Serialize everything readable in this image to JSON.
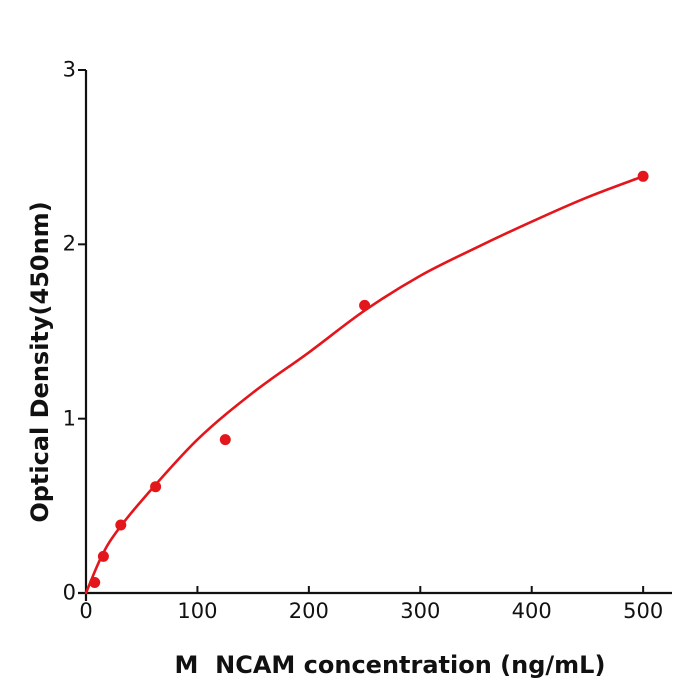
{
  "figure": {
    "background": "#ffffff",
    "axis_color": "#111111",
    "text_color": "#111111"
  },
  "chart_data": {
    "type": "scatter",
    "title": "",
    "xlabel": "M  NCAM concentration (ng/mL)",
    "ylabel": "Optical Density(450nm)",
    "xlim": [
      0,
      526
    ],
    "ylim": [
      0,
      3
    ],
    "x_ticks": [
      0,
      100,
      200,
      300,
      400,
      500
    ],
    "y_ticks": [
      0,
      1,
      2,
      3
    ],
    "grid": false,
    "legend": "none",
    "series": [
      {
        "name": "standard-points",
        "type": "scatter",
        "marker": "circle",
        "marker_radius": 5.5,
        "color": "#e3161c",
        "x": [
          7.8,
          15.6,
          31.2,
          62.5,
          125,
          250,
          500
        ],
        "y": [
          0.06,
          0.21,
          0.39,
          0.61,
          0.88,
          1.65,
          2.39
        ]
      },
      {
        "name": "fit-curve",
        "type": "line",
        "line_width": 2.6,
        "color": "#e3161c",
        "x": [
          0,
          12.5,
          25,
          50,
          100,
          150,
          200,
          250,
          300,
          350,
          400,
          450,
          500
        ],
        "y": [
          0,
          0.19,
          0.33,
          0.53,
          0.88,
          1.15,
          1.38,
          1.62,
          1.82,
          1.98,
          2.13,
          2.27,
          2.39
        ]
      }
    ]
  }
}
